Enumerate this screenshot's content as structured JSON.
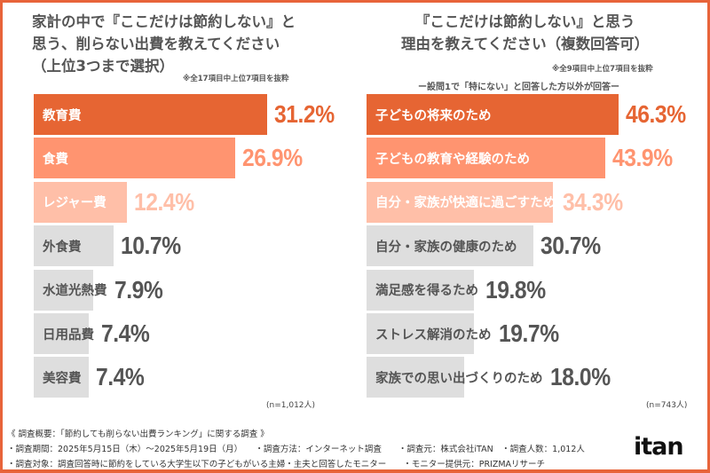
{
  "left": {
    "title_lines": [
      "家計の中で『ここだけは節約しない』と",
      "思う、削らない出費を教えてください",
      "（上位3つまで選択）"
    ],
    "note": "※全17項目中上位7項目を抜粋",
    "n": "(n=1,012人)"
  },
  "right": {
    "title_lines": [
      "『ここだけは節約しない』と思う",
      "理由を教えてください（複数回答可）"
    ],
    "note": "※全9項目中上位7項目を抜粋",
    "subnote": "ー設問1で「特にない」と回答した方以外が回答ー",
    "n": "(n=743人)"
  },
  "colors": {
    "rank1": "#E66533",
    "rank2": "#FF9470",
    "rank3": "#FFBFA8",
    "other": "#DEDEDE",
    "other_text": "#555555",
    "frame": "#E8643A"
  },
  "chart_data": [
    {
      "type": "bar",
      "orientation": "horizontal",
      "unit": "%",
      "categories": [
        "教育費",
        "食費",
        "レジャー費",
        "外食費",
        "水道光熱費",
        "日用品費",
        "美容費"
      ],
      "values": [
        31.2,
        26.9,
        12.4,
        10.7,
        7.9,
        7.4,
        7.4
      ],
      "labels": [
        "31.2%",
        "26.9%",
        "12.4%",
        "10.7%",
        "7.9%",
        "7.4%",
        "7.4%"
      ]
    },
    {
      "type": "bar",
      "orientation": "horizontal",
      "unit": "%",
      "categories": [
        "子どもの将来のため",
        "子どもの教育や経験のため",
        "自分・家族が快適に過ごすため",
        "自分・家族の健康のため",
        "満足感を得るため",
        "ストレス解消のため",
        "家族での思い出づくりのため"
      ],
      "values": [
        46.3,
        43.9,
        34.3,
        30.7,
        19.8,
        19.7,
        18.0
      ],
      "labels": [
        "46.3%",
        "43.9%",
        "34.3%",
        "30.7%",
        "19.8%",
        "19.7%",
        "18.0%"
      ]
    }
  ],
  "footer": {
    "lines": [
      "《 調査概要：「節約しても削らない出費ランキング」に関する調査 》",
      "・調査期間：2025年5月15日（木）～2025年5月19日（月）　　・調査方法：インターネット調査　　・調査元：株式会社iTAN　・調査人数：1,012人",
      "・調査対象：調査回答時に節約をしている大学生以下の子どもがいる主婦・主夫と回答したモニター　　・モニター提供元：PRIZMAリサーチ"
    ],
    "logo": "itan"
  }
}
